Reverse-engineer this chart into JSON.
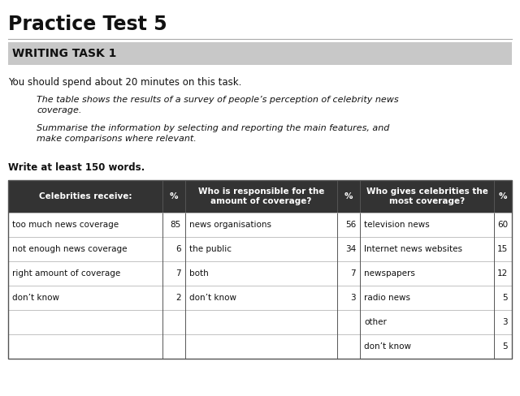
{
  "title": "Practice Test 5",
  "section": "WRITING TASK 1",
  "instruction": "You should spend about 20 minutes on this task.",
  "task_italic_1": "The table shows the results of a survey of people’s perception of celebrity news\ncoverage.",
  "task_italic_2": "Summarise the information by selecting and reporting the main features, and\nmake comparisons where relevant.",
  "footer": "Write at least 150 words.",
  "header_bg": "#333333",
  "header_text_color": "#ffffff",
  "col1_header": "Celebrities receive:",
  "col2_header": "%",
  "col3_header": "Who is responsible for the\namount of coverage?",
  "col4_header": "%",
  "col5_header": "Who gives celebrities the\nmost coverage?",
  "col6_header": "%",
  "col1_data": [
    "too much news coverage",
    "not enough news coverage",
    "right amount of coverage",
    "don’t know",
    "",
    "",
    ""
  ],
  "col2_data": [
    "85",
    "6",
    "7",
    "2",
    "",
    "",
    ""
  ],
  "col3_data": [
    "news organisations",
    "the public",
    "both",
    "don’t know",
    "",
    "",
    ""
  ],
  "col4_data": [
    "56",
    "34",
    "7",
    "3",
    "",
    "",
    ""
  ],
  "col5_data": [
    "television news",
    "Internet news websites",
    "newspapers",
    "radio news",
    "other",
    "don’t know",
    ""
  ],
  "col6_data": [
    "60",
    "15",
    "12",
    "5",
    "3",
    "5",
    ""
  ],
  "bg_white": "#ffffff",
  "bg_page": "#f5f5f5",
  "writing_task_bg": "#c8c8c8",
  "n_data_rows": 6
}
